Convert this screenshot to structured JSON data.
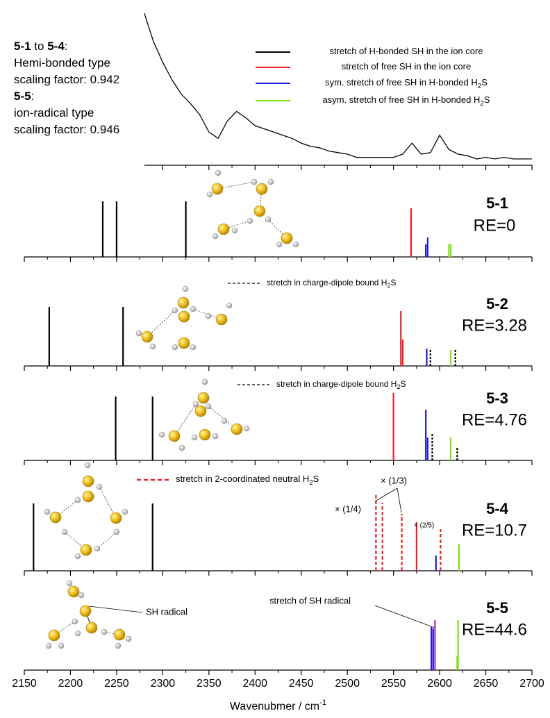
{
  "chart_data": {
    "type": "stick",
    "xlim": [
      2150,
      2700
    ],
    "xticks": [
      2150,
      2200,
      2250,
      2300,
      2350,
      2400,
      2450,
      2500,
      2550,
      2600,
      2650,
      2700
    ],
    "minor_xticks": [
      2175,
      2225,
      2275,
      2325,
      2375,
      2425,
      2475,
      2525,
      2575,
      2625,
      2675
    ],
    "xlabel": [
      "Wavenubmer / cm",
      "-1"
    ],
    "note": [
      [
        "5-1",
        " to ",
        "5-4",
        ":"
      ],
      [
        "Hemi-bonded type"
      ],
      [
        "scaling factor: 0.942"
      ],
      [
        "5-5",
        ":"
      ],
      [
        "ion-radical type"
      ],
      [
        "scaling factor: 0.946"
      ]
    ],
    "legend": [
      {
        "name": [
          "stretch of H-bonded SH in the ion core"
        ],
        "color": "#000000"
      },
      {
        "name": [
          "stretch of free SH in the ion core"
        ],
        "color": "#e8202a"
      },
      {
        "name": [
          "sym. stretch of free SH in H-bonded H",
          "2",
          "S"
        ],
        "color": "#1b1bd6"
      },
      {
        "name": [
          "asym. stretch of free SH in H-bonded H",
          "2",
          "S"
        ],
        "color": "#80e020"
      }
    ],
    "experiment": {
      "color": "#000000",
      "ylim": [
        0,
        100
      ],
      "x": [
        2280,
        2290,
        2300,
        2310,
        2320,
        2330,
        2340,
        2350,
        2360,
        2370,
        2380,
        2390,
        2400,
        2410,
        2420,
        2430,
        2440,
        2450,
        2460,
        2470,
        2480,
        2490,
        2500,
        2510,
        2520,
        2530,
        2540,
        2550,
        2560,
        2570,
        2580,
        2590,
        2600,
        2610,
        2620,
        2630,
        2640,
        2650,
        2660,
        2670,
        2680,
        2690,
        2700
      ],
      "values": [
        96,
        78,
        65,
        54,
        45,
        39,
        32,
        21,
        17,
        28,
        34,
        30,
        25,
        23,
        21,
        19,
        17,
        14,
        12,
        11,
        9,
        8,
        7,
        5,
        5,
        5,
        5,
        5,
        7,
        14,
        7,
        8,
        19,
        10,
        7,
        6,
        4,
        5,
        4,
        5,
        4,
        4,
        4
      ]
    },
    "panels": [
      {
        "label": "5-1",
        "energy": "RE=0",
        "ylim": [
          0,
          110
        ],
        "series": [
          {
            "color": "#000000",
            "dashed": false,
            "x": [
              2235,
              2250,
              2325
            ],
            "values": [
              80,
              80,
              80
            ]
          },
          {
            "color": "#e8202a",
            "dashed": false,
            "x": [
              2569
            ],
            "values": [
              70
            ]
          },
          {
            "color": "#1b1bd6",
            "dashed": false,
            "x": [
              2585,
              2587
            ],
            "values": [
              18,
              28
            ]
          },
          {
            "color": "#80e020",
            "dashed": false,
            "x": [
              2610,
              2612
            ],
            "values": [
              18,
              19
            ]
          }
        ]
      },
      {
        "label": "5-2",
        "energy": "RE=3.28",
        "ylim": [
          0,
          110
        ],
        "legend": {
          "text": [
            "stretch in charge-dipole bound H",
            "2",
            "S"
          ],
          "color": "#000000",
          "dashed": true
        },
        "series": [
          {
            "color": "#000000",
            "dashed": false,
            "x": [
              2177,
              2257
            ],
            "values": [
              85,
              85
            ]
          },
          {
            "color": "#e8202a",
            "dashed": false,
            "x": [
              2558,
              2560
            ],
            "values": [
              79,
              38
            ]
          },
          {
            "color": "#1b1bd6",
            "dashed": false,
            "x": [
              2586
            ],
            "values": [
              25
            ]
          },
          {
            "color": "#80e020",
            "dashed": false,
            "x": [
              2612
            ],
            "values": [
              23
            ]
          },
          {
            "color": "#000000",
            "dashed": true,
            "x": [
              2590,
              2617
            ],
            "values": [
              25,
              25
            ]
          }
        ]
      },
      {
        "label": "5-3",
        "energy": "RE=4.76",
        "ylim": [
          0,
          110
        ],
        "legend": {
          "text": [
            "stretch in charge-dipole bound H",
            "2",
            "S"
          ],
          "color": "#000000",
          "dashed": true
        },
        "series": [
          {
            "color": "#000000",
            "dashed": false,
            "x": [
              2249,
              2289
            ],
            "values": [
              92,
              92
            ]
          },
          {
            "color": "#e8202a",
            "dashed": false,
            "x": [
              2550
            ],
            "values": [
              97
            ]
          },
          {
            "color": "#1b1bd6",
            "dashed": false,
            "x": [
              2585,
              2587
            ],
            "values": [
              73,
              33
            ]
          },
          {
            "color": "#80e020",
            "dashed": false,
            "x": [
              2612
            ],
            "values": [
              33
            ]
          },
          {
            "color": "#000000",
            "dashed": true,
            "x": [
              2592,
              2619
            ],
            "values": [
              40,
              18
            ]
          }
        ]
      },
      {
        "label": "5-4",
        "energy": "RE=10.7",
        "ylim": [
          0,
          110
        ],
        "legend": {
          "text": [
            "stretch in 2-coordinated neutral H",
            "2",
            "S"
          ],
          "color": "#e8202a",
          "dashed": true
        },
        "annotations": [
          "× (1/4)",
          "× (1/3)",
          "× (2/5)"
        ],
        "series": [
          {
            "color": "#000000",
            "dashed": false,
            "x": [
              2160,
              2289
            ],
            "values": [
              97,
              97
            ]
          },
          {
            "color": "#e8202a",
            "dashed": false,
            "x": [
              2575
            ],
            "values": [
              70
            ]
          },
          {
            "color": "#e8202a",
            "dashed": true,
            "x": [
              2531,
              2538,
              2559,
              2601
            ],
            "values": [
              110,
              98,
              82,
              60
            ]
          },
          {
            "color": "#1b1bd6",
            "dashed": false,
            "x": [
              2596
            ],
            "values": [
              22
            ]
          },
          {
            "color": "#80e020",
            "dashed": false,
            "x": [
              2621
            ],
            "values": [
              38
            ]
          }
        ]
      },
      {
        "label": "5-5",
        "energy": "RE=44.6",
        "ylim": [
          0,
          110
        ],
        "annotations": [
          "stretch of SH radical",
          "SH radical"
        ],
        "series": [
          {
            "color": "#1b1bd6",
            "dashed": false,
            "x": [
              2591,
              2593
            ],
            "values": [
              62,
              60
            ]
          },
          {
            "color": "#b030c8",
            "dashed": false,
            "x": [
              2595
            ],
            "values": [
              72
            ]
          },
          {
            "color": "#80e020",
            "dashed": false,
            "x": [
              2619,
              2620
            ],
            "values": [
              20,
              72
            ]
          }
        ]
      }
    ]
  }
}
